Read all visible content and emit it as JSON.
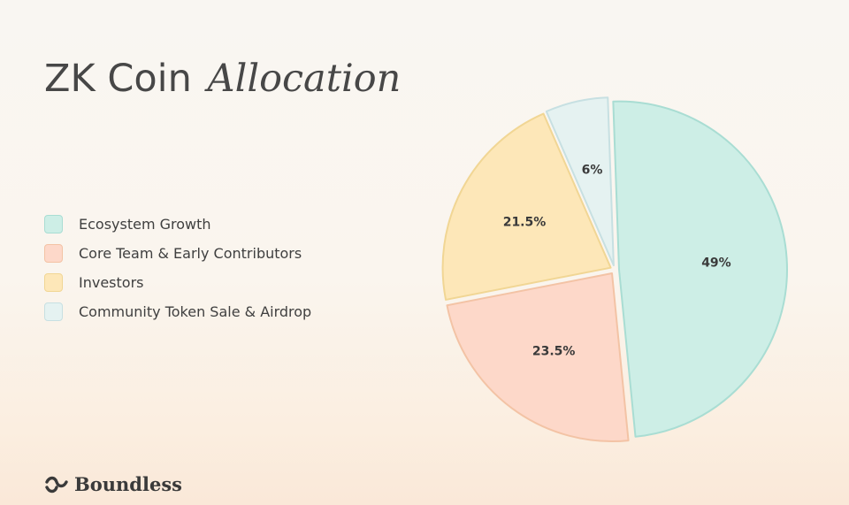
{
  "title": {
    "main": "ZK Coin",
    "accent": "Allocation"
  },
  "brand": {
    "name": "Boundless",
    "icon": "boundless-logo-icon"
  },
  "chart_data": {
    "type": "pie",
    "categories": [
      "Ecosystem Growth",
      "Core Team & Early Contributors",
      "Investors",
      "Community Token Sale & Airdrop"
    ],
    "values": [
      49,
      23.5,
      21.5,
      6
    ],
    "labels": [
      "49%",
      "23.5%",
      "21.5%",
      "6%"
    ],
    "unit": "%",
    "start_angle_deg": -2,
    "direction": "clockwise",
    "legend": "left",
    "colors": {
      "fills": [
        "#cdeee6",
        "#fdd8c9",
        "#fde7b8",
        "#e5f2f1"
      ],
      "strokes": [
        "#a9ddd3",
        "#f3c3a5",
        "#f1d694",
        "#c7e0e2"
      ]
    }
  }
}
